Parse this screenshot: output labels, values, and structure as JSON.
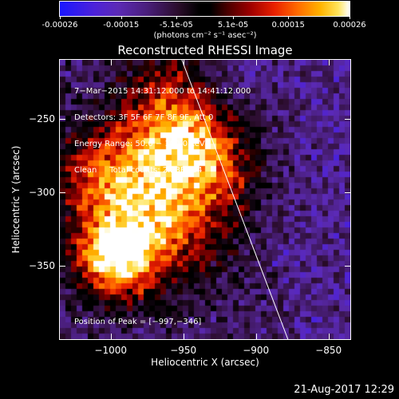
{
  "colorbar": {
    "tick_labels": [
      "-0.00026",
      "-0.00015",
      "-5.1e-05",
      "5.1e-05",
      "0.00015",
      "0.00026"
    ],
    "tick_values": [
      -0.00026,
      -0.00015,
      -5.1e-05,
      5.1e-05,
      0.00015,
      0.00026
    ],
    "range": [
      -0.00026,
      0.00026
    ],
    "unit_label": "(photons cm⁻² s⁻¹ asec⁻²)"
  },
  "chart_data": {
    "type": "heatmap",
    "title": "Reconstructed RHESSI Image",
    "xlabel": "Heliocentric X (arcsec)",
    "ylabel": "Heliocentric Y (arcsec)",
    "xlim": [
      -1035,
      -835
    ],
    "ylim": [
      -400,
      -210
    ],
    "x_ticks": [
      -1000,
      -950,
      -900,
      -850
    ],
    "y_ticks": [
      -250,
      -300,
      -350
    ],
    "x_tick_labels": [
      "−1000",
      "−950",
      "−900",
      "−850"
    ],
    "y_tick_labels": [
      "−250",
      "−300",
      "−350"
    ],
    "peak": {
      "x": -997,
      "y": -346
    },
    "limb_line": [
      [
        -951,
        -210
      ],
      [
        -878,
        -400
      ]
    ],
    "annotations": [
      "7−Mar−2015 14:31:12.000 to 14:41:12.000",
      "Detectors: 3F 5F 6F 7F 8F 9F, Att 0",
      "Energy Range: 50.0 − 100.0 keV",
      "Clean     Total counts: 2.23E+04"
    ],
    "peak_label": "Position of Peak = [−997,−346]"
  },
  "timestamp": "21-Aug-2017 12:29"
}
